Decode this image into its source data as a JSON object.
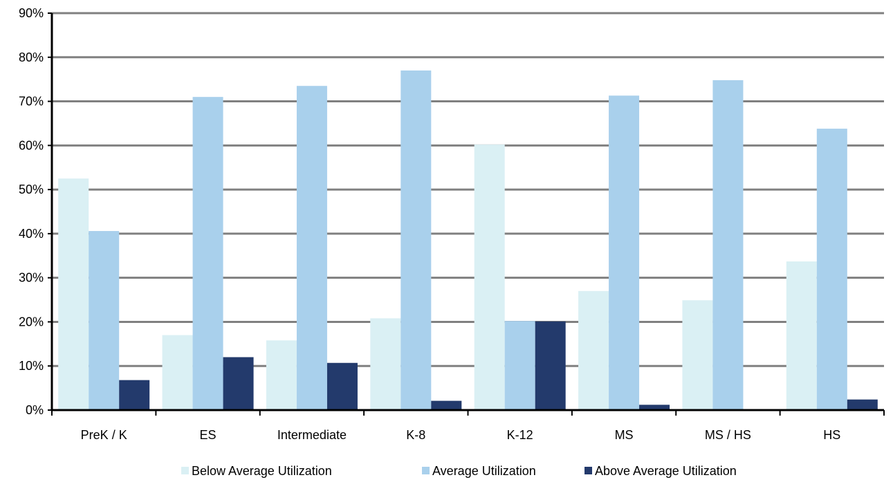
{
  "chart_data": {
    "type": "bar",
    "title": "",
    "xlabel": "",
    "ylabel": "",
    "categories": [
      "PreK / K",
      "ES",
      "Intermediate",
      "K-8",
      "K-12",
      "MS",
      "MS / HS",
      "HS"
    ],
    "series": [
      {
        "name": "Below Average Utilization",
        "color": "#daf0f4",
        "values": [
          52.5,
          17.0,
          15.8,
          20.8,
          60.2,
          27.0,
          24.9,
          33.7
        ]
      },
      {
        "name": "Average Utilization",
        "color": "#a9d0ec",
        "values": [
          40.6,
          71.0,
          73.5,
          77.0,
          20.2,
          71.3,
          74.8,
          63.8
        ]
      },
      {
        "name": "Above Average Utilization",
        "color": "#233a6c",
        "values": [
          6.8,
          12.0,
          10.7,
          2.1,
          20.1,
          1.2,
          0.0,
          2.4
        ]
      }
    ],
    "ylim": [
      0,
      90
    ],
    "yticks": [
      0,
      10,
      20,
      30,
      40,
      50,
      60,
      70,
      80,
      90
    ],
    "ytick_labels": [
      "0%",
      "10%",
      "20%",
      "30%",
      "40%",
      "50%",
      "60%",
      "70%",
      "80%",
      "90%"
    ],
    "grid": true,
    "legend_position": "bottom"
  }
}
